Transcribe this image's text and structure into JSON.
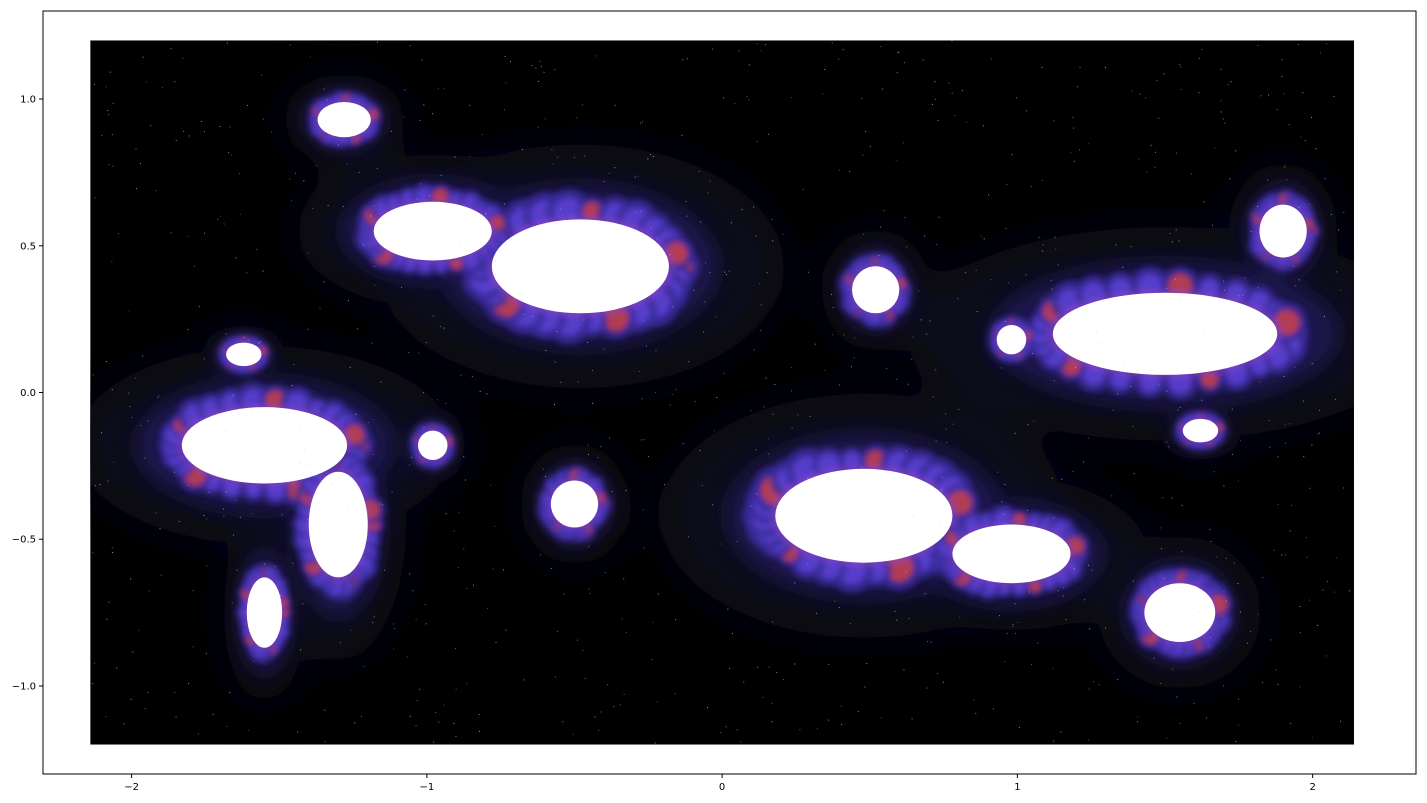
{
  "chart_data": {
    "type": "heatmap",
    "title": "",
    "xlabel": "",
    "ylabel": "",
    "xlim": [
      -2.3,
      2.35
    ],
    "ylim": [
      -1.3,
      1.3
    ],
    "extent": {
      "x": [
        -2.14,
        2.14
      ],
      "y": [
        -1.2,
        1.2
      ]
    },
    "grid": false,
    "colormap": [
      "#000000",
      "#0b0820",
      "#1e1550",
      "#3a2a9a",
      "#5b3fd0",
      "#8a44c8",
      "#c0404a",
      "#ffffff"
    ],
    "x_ticks": [
      {
        "value": -2,
        "label": "−2"
      },
      {
        "value": -1,
        "label": "−1"
      },
      {
        "value": 0,
        "label": "0"
      },
      {
        "value": 1,
        "label": "1"
      },
      {
        "value": 2,
        "label": "2"
      }
    ],
    "y_ticks": [
      {
        "value": 1.0,
        "label": "1.0"
      },
      {
        "value": 0.5,
        "label": "0.5"
      },
      {
        "value": 0.0,
        "label": "0.0"
      },
      {
        "value": -0.5,
        "label": "−0.5"
      },
      {
        "value": -1.0,
        "label": "−1.0"
      }
    ],
    "bright_regions": [
      {
        "cx": -0.48,
        "cy": 0.43,
        "rx": 0.3,
        "ry": 0.16
      },
      {
        "cx": -0.98,
        "cy": 0.55,
        "rx": 0.2,
        "ry": 0.1
      },
      {
        "cx": -1.55,
        "cy": -0.18,
        "rx": 0.28,
        "ry": 0.13
      },
      {
        "cx": -1.3,
        "cy": -0.45,
        "rx": 0.1,
        "ry": 0.18
      },
      {
        "cx": 0.48,
        "cy": -0.42,
        "rx": 0.3,
        "ry": 0.16
      },
      {
        "cx": 1.5,
        "cy": 0.2,
        "rx": 0.38,
        "ry": 0.14
      },
      {
        "cx": 0.98,
        "cy": -0.55,
        "rx": 0.2,
        "ry": 0.1
      },
      {
        "cx": 1.55,
        "cy": -0.75,
        "rx": 0.12,
        "ry": 0.1
      },
      {
        "cx": -1.55,
        "cy": -0.75,
        "rx": 0.06,
        "ry": 0.12
      },
      {
        "cx": -1.28,
        "cy": 0.93,
        "rx": 0.09,
        "ry": 0.06
      },
      {
        "cx": 1.9,
        "cy": 0.55,
        "rx": 0.08,
        "ry": 0.09
      },
      {
        "cx": 0.52,
        "cy": 0.35,
        "rx": 0.08,
        "ry": 0.08
      },
      {
        "cx": -0.5,
        "cy": -0.38,
        "rx": 0.08,
        "ry": 0.08
      },
      {
        "cx": -1.62,
        "cy": 0.13,
        "rx": 0.06,
        "ry": 0.04
      },
      {
        "cx": 1.62,
        "cy": -0.13,
        "rx": 0.06,
        "ry": 0.04
      },
      {
        "cx": -0.98,
        "cy": -0.18,
        "rx": 0.05,
        "ry": 0.05
      },
      {
        "cx": 0.98,
        "cy": 0.18,
        "rx": 0.05,
        "ry": 0.05
      }
    ]
  }
}
